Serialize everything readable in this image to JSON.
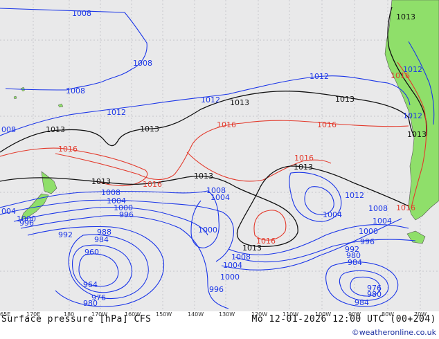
{
  "map": {
    "isobar_labels": {
      "l1008a": "1008",
      "l1008b": "1008",
      "l1008c": "1008",
      "l008": "008",
      "l1012a": "1012",
      "l1012b": "1012",
      "l1012c": "1012",
      "l1012d": "1012",
      "l1012e": "1012",
      "l1012f": "1012",
      "l1013a": "1013",
      "l1013b": "1013",
      "l1013c": "1013",
      "l1013d": "1013",
      "l1013e": "1013",
      "l1013f": "1013",
      "l1013g": "1013",
      "l1013h": "1013",
      "l1016a": "1016",
      "l1016b": "1016",
      "l1016c": "1016",
      "l1016d": "1016",
      "l1016e": "1016",
      "l1016f": "1016",
      "l1016g": "1016",
      "l1016h": "1016",
      "l1008d": "1008",
      "l1008e": "1008",
      "l1008f": "1008",
      "l1008g": "1008",
      "l1004a": "1004",
      "l1004b": "1004",
      "l1004c": "1004",
      "l1004d": "1004",
      "l1004e": "1004",
      "l004": "004",
      "l1000a": "1000",
      "l1000b": "1000",
      "l1000c": "1000",
      "l1000d": "1000",
      "l1000e": "1000",
      "l996a": "996",
      "l996b": "996",
      "l996c": "996",
      "l996d": "996",
      "l992a": "992",
      "l992b": "992",
      "l988": "988",
      "l984a": "984",
      "l984b": "984",
      "l984c": "984",
      "l980a": "980",
      "l980b": "980",
      "l980c": "980",
      "l976a": "976",
      "l976b": "976",
      "l964": "964",
      "l960": "960"
    },
    "longitude_ticks": [
      "65E",
      "170E",
      "180",
      "170W",
      "160W",
      "150W",
      "140W",
      "130W",
      "120W",
      "110W",
      "100W",
      "90W",
      "80W",
      "70W"
    ],
    "colors": {
      "ocean": "#e9e9ea",
      "land": "#8fdf6a",
      "low_isobar": "#1a35e8",
      "high_isobar": "#e33a2c",
      "ref_isobar": "#111111"
    }
  },
  "footer": {
    "title_left": "Surface pressure [hPa] CFS",
    "title_right": "Mo 12-01-2026 12:00 UTC (00+204)",
    "credit": "©weatheronline.co.uk"
  }
}
